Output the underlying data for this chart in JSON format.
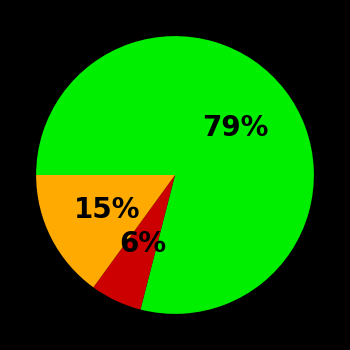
{
  "slices": [
    79,
    6,
    15
  ],
  "colors": [
    "#00ee00",
    "#cc0000",
    "#ffaa00"
  ],
  "labels": [
    "79%",
    "6%",
    "15%"
  ],
  "background_color": "#000000",
  "label_fontsize": 20,
  "label_fontweight": "bold",
  "startangle": 180,
  "counterclock": false,
  "label_radii": [
    0.55,
    0.55,
    0.55
  ],
  "figsize": [
    3.5,
    3.5
  ],
  "dpi": 100
}
